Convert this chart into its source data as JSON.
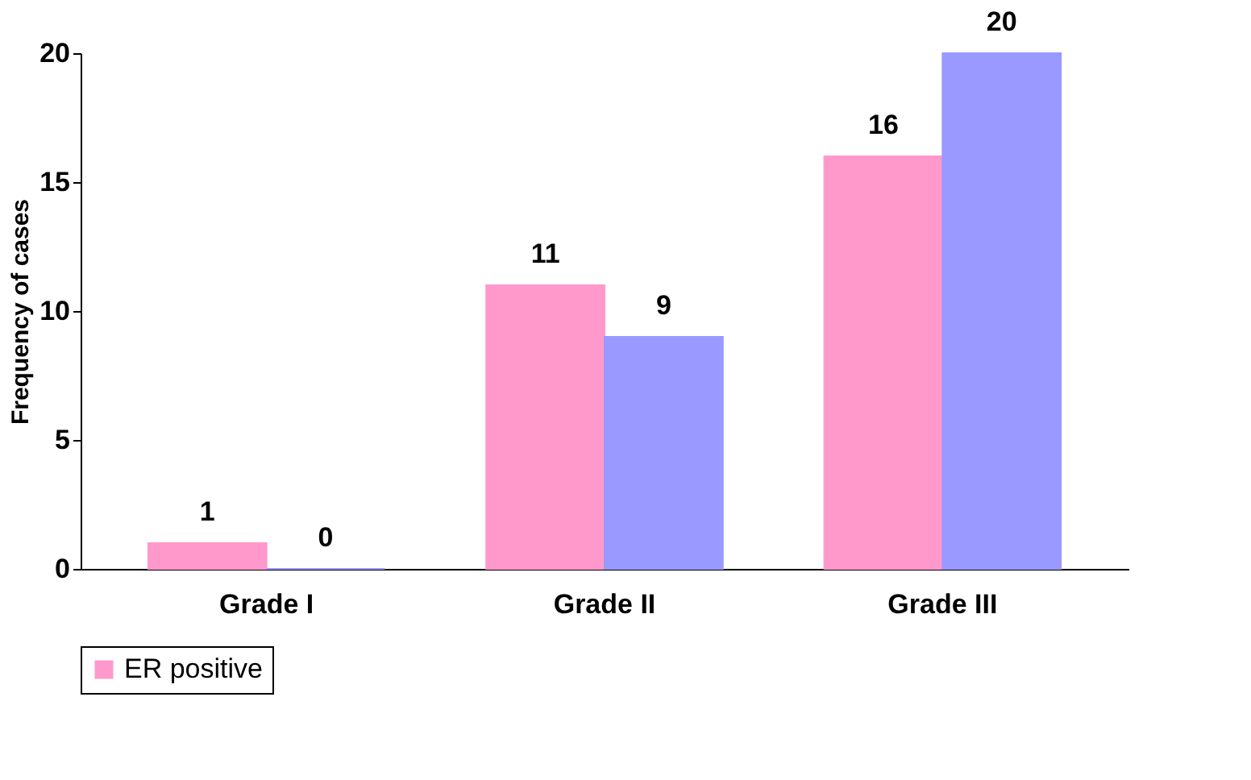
{
  "chart_data": {
    "type": "bar",
    "ylabel": "Frequency of cases",
    "categories": [
      "Grade I",
      "Grade II",
      "Grade III"
    ],
    "series": [
      {
        "name": "ER positive",
        "color": "#ff99cc",
        "values": [
          1,
          11,
          16
        ]
      },
      {
        "color": "#9999ff",
        "values": [
          0,
          9,
          20
        ]
      }
    ],
    "ylim": [
      0,
      20
    ],
    "yticks": [
      0,
      5,
      10,
      15,
      20
    ],
    "data_labels": true,
    "grid": false,
    "legend": "bottom"
  }
}
